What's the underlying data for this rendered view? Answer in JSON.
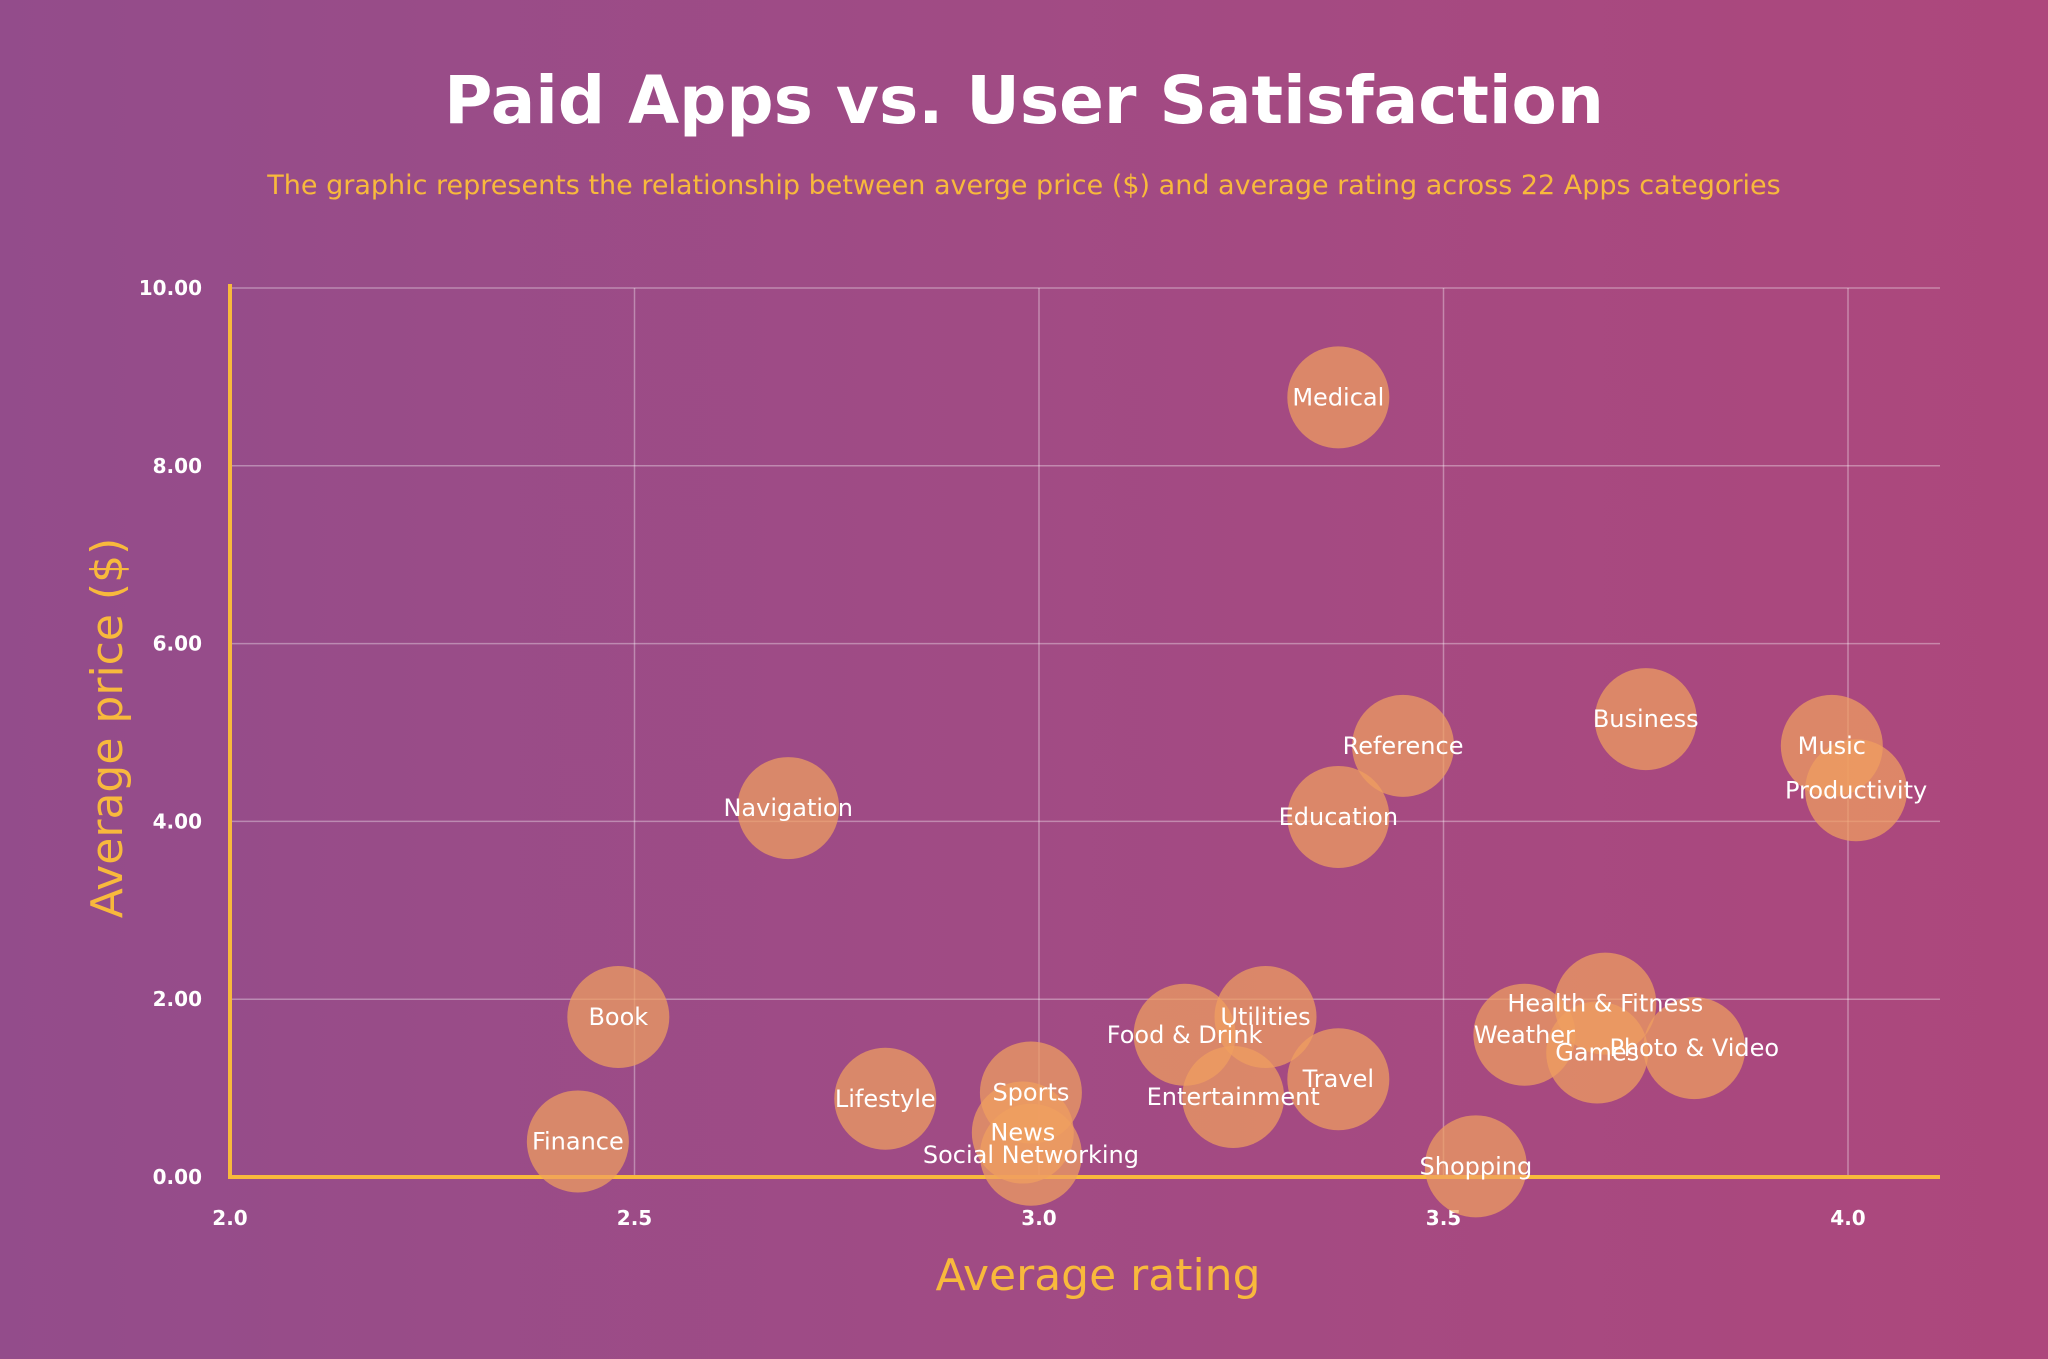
{
  "header": {
    "title": "Paid Apps vs. User Satisfaction",
    "subtitle": "The graphic represents the relationship between averge price ($) and average rating across 22 Apps categories"
  },
  "colors": {
    "background_left": "#934c8b",
    "background_right": "#ad477c",
    "accent": "#f8b93c",
    "bubble": "#f0a060",
    "text": "#ffffff"
  },
  "chart_data": {
    "type": "scatter",
    "xlabel": "Average rating",
    "ylabel": "Average price ($)",
    "xlim": [
      2.0,
      4.1
    ],
    "ylim": [
      0,
      10
    ],
    "xticks": [
      "2.0",
      "2.5",
      "3.0",
      "3.5",
      "4.0"
    ],
    "yticks": [
      "0.00",
      "2.00",
      "4.00",
      "6.00",
      "8.00",
      "10.00"
    ],
    "xtick_values": [
      2.0,
      2.5,
      3.0,
      3.5,
      4.0
    ],
    "ytick_values": [
      0,
      2,
      4,
      6,
      8,
      10
    ],
    "grid": true,
    "points": [
      {
        "label": "Medical",
        "x": 3.37,
        "y": 8.77
      },
      {
        "label": "Business",
        "x": 3.75,
        "y": 5.15
      },
      {
        "label": "Music",
        "x": 3.98,
        "y": 4.85
      },
      {
        "label": "Productivity",
        "x": 4.01,
        "y": 4.35
      },
      {
        "label": "Reference",
        "x": 3.45,
        "y": 4.85
      },
      {
        "label": "Education",
        "x": 3.37,
        "y": 4.05
      },
      {
        "label": "Navigation",
        "x": 2.69,
        "y": 4.15
      },
      {
        "label": "Health & Fitness",
        "x": 3.7,
        "y": 1.95
      },
      {
        "label": "Photo & Video",
        "x": 3.81,
        "y": 1.45
      },
      {
        "label": "Weather",
        "x": 3.6,
        "y": 1.6
      },
      {
        "label": "Games",
        "x": 3.69,
        "y": 1.4
      },
      {
        "label": "Utilities",
        "x": 3.28,
        "y": 1.8
      },
      {
        "label": "Food & Drink",
        "x": 3.18,
        "y": 1.6
      },
      {
        "label": "Travel",
        "x": 3.37,
        "y": 1.1
      },
      {
        "label": "Entertainment",
        "x": 3.24,
        "y": 0.9
      },
      {
        "label": "Book",
        "x": 2.48,
        "y": 1.8
      },
      {
        "label": "Lifestyle",
        "x": 2.81,
        "y": 0.88
      },
      {
        "label": "Sports",
        "x": 2.99,
        "y": 0.95
      },
      {
        "label": "News",
        "x": 2.98,
        "y": 0.5
      },
      {
        "label": "Social Networking",
        "x": 2.99,
        "y": 0.25
      },
      {
        "label": "Finance",
        "x": 2.43,
        "y": 0.4
      },
      {
        "label": "Shopping",
        "x": 3.54,
        "y": 0.12
      }
    ]
  }
}
